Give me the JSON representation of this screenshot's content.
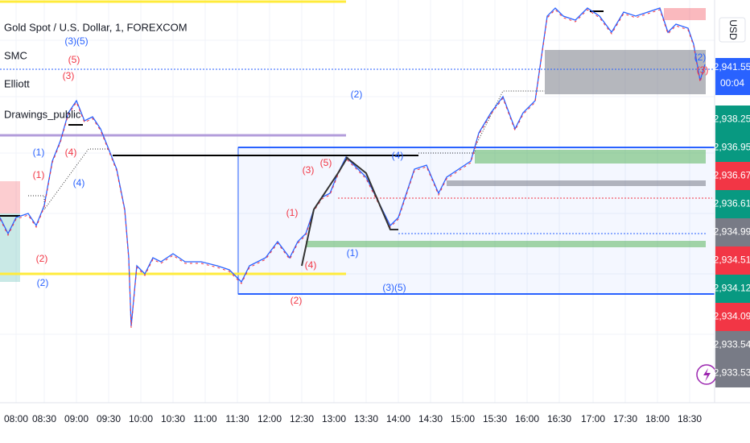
{
  "legend": [
    "Gold Spot / U.S. Dollar, 1, FOREXCOM",
    "SMC",
    "Elliott",
    "Drawings_public"
  ],
  "currency": "USD",
  "price_tags": [
    {
      "label": "2,941.55",
      "color": "#2962ff",
      "sub": "00:04"
    },
    {
      "label": "2,938.25",
      "color": "#089981"
    },
    {
      "label": "2,936.95",
      "color": "#089981"
    },
    {
      "label": "2,936.67",
      "color": "#f23645"
    },
    {
      "label": "2,936.61",
      "color": "#089981"
    },
    {
      "label": "2,934.99",
      "color": "#787b86"
    },
    {
      "label": "2,934.51",
      "color": "#f23645"
    },
    {
      "label": "2,934.12",
      "color": "#089981"
    },
    {
      "label": "2,934.09",
      "color": "#f23645"
    },
    {
      "label": "2,933.54",
      "color": "#787b86"
    },
    {
      "label": "2,933.53",
      "color": "#787b86"
    }
  ],
  "time_labels": [
    "08:00",
    "08:30",
    "09:00",
    "09:30",
    "10:00",
    "10:30",
    "11:00",
    "11:30",
    "12:00",
    "12:30",
    "13:00",
    "13:30",
    "14:00",
    "14:30",
    "15:00",
    "15:30",
    "16:00",
    "16:30",
    "17:00",
    "17:30",
    "18:00",
    "18:30"
  ],
  "wave_labels": {
    "red": [
      "(3)",
      "(5)",
      "(4)",
      "(1)",
      "(2)",
      "(3)",
      "(5)",
      "(1)",
      "(4)",
      "(2)",
      "(3)"
    ],
    "blue": [
      "(3)(5)",
      "(2)",
      "(1)",
      "(4)",
      "(2)",
      "(4)",
      "(1)",
      "(3)(5)",
      "(2)"
    ]
  }
}
